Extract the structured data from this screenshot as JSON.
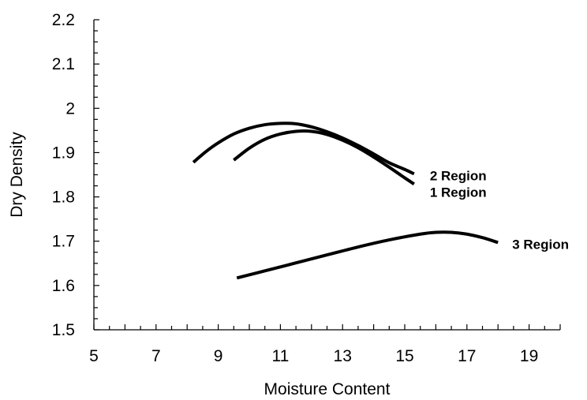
{
  "chart_data": {
    "type": "line",
    "title": "",
    "xlabel": "Moisture Content",
    "ylabel": "Dry Density",
    "xlim": [
      5,
      20
    ],
    "ylim": [
      1.5,
      2.2
    ],
    "x_ticks": [
      5,
      7,
      9,
      11,
      13,
      15,
      17,
      19
    ],
    "y_ticks": [
      "1.5",
      "1.6",
      "1.7",
      "1.8",
      "1.9",
      "2",
      "2.1",
      "2.2"
    ],
    "x_ticks_visible": [
      5,
      7,
      9,
      11,
      13,
      15,
      17,
      19
    ],
    "grid": false,
    "legend": "none",
    "series": [
      {
        "name": "2 Region",
        "label_position": "right-end",
        "points": [
          [
            8.2,
            1.878
          ],
          [
            8.6,
            1.902
          ],
          [
            9.0,
            1.922
          ],
          [
            9.5,
            1.942
          ],
          [
            10.0,
            1.955
          ],
          [
            10.5,
            1.963
          ],
          [
            11.0,
            1.966
          ],
          [
            11.5,
            1.965
          ],
          [
            12.0,
            1.958
          ],
          [
            12.5,
            1.947
          ],
          [
            13.0,
            1.933
          ],
          [
            13.5,
            1.916
          ],
          [
            14.0,
            1.897
          ],
          [
            14.5,
            1.877
          ],
          [
            15.0,
            1.862
          ],
          [
            15.3,
            1.852
          ]
        ]
      },
      {
        "name": "1 Region",
        "label_position": "right-end",
        "points": [
          [
            9.5,
            1.883
          ],
          [
            10.0,
            1.91
          ],
          [
            10.5,
            1.93
          ],
          [
            11.0,
            1.942
          ],
          [
            11.5,
            1.948
          ],
          [
            12.0,
            1.948
          ],
          [
            12.5,
            1.941
          ],
          [
            13.0,
            1.928
          ],
          [
            13.5,
            1.911
          ],
          [
            14.0,
            1.89
          ],
          [
            14.5,
            1.867
          ],
          [
            15.0,
            1.843
          ],
          [
            15.3,
            1.829
          ]
        ]
      },
      {
        "name": "3 Region",
        "label_position": "right-end",
        "points": [
          [
            9.6,
            1.617
          ],
          [
            10.5,
            1.633
          ],
          [
            11.5,
            1.651
          ],
          [
            12.5,
            1.669
          ],
          [
            13.5,
            1.687
          ],
          [
            14.5,
            1.703
          ],
          [
            15.5,
            1.716
          ],
          [
            16.0,
            1.72
          ],
          [
            16.5,
            1.72
          ],
          [
            17.0,
            1.716
          ],
          [
            17.5,
            1.708
          ],
          [
            18.0,
            1.697
          ]
        ]
      }
    ]
  }
}
